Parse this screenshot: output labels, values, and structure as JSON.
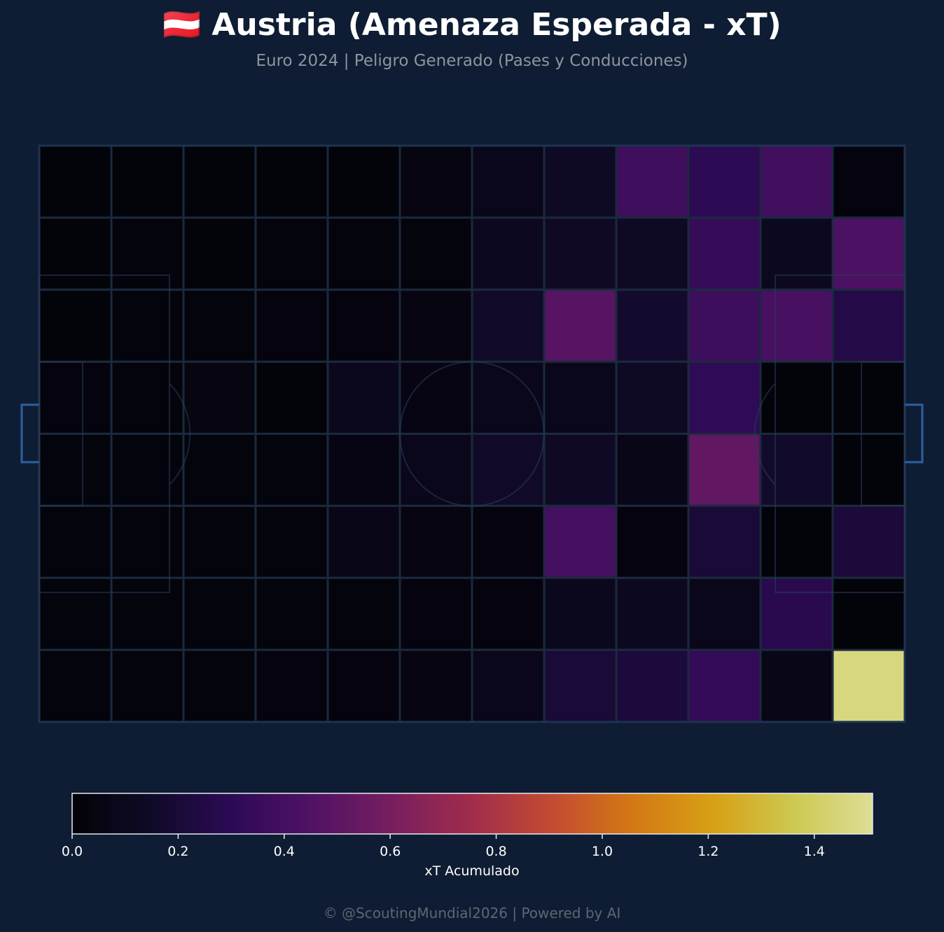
{
  "header": {
    "title": "🇦🇹 Austria (Amenaza Esperada - xT)",
    "subtitle": "Euro 2024 | Peligro Generado (Pases y Conducciones)"
  },
  "footer": {
    "credit": "© @ScoutingMundial2026 | Powered by AI"
  },
  "colors": {
    "background": "#0e1d33",
    "pitch_lines": "#1b2a3d",
    "goal": "#2d5fa0"
  },
  "chart_data": {
    "type": "heatmap",
    "colormap": "inferno",
    "grid": {
      "rows": 8,
      "cols": 12
    },
    "vmin": 0,
    "vmax": 1.51,
    "values": [
      [
        0.01,
        0.01,
        0.01,
        0.01,
        0.01,
        0.04,
        0.08,
        0.13,
        0.38,
        0.3,
        0.39,
        0.03
      ],
      [
        0.01,
        0.02,
        0.01,
        0.02,
        0.02,
        0.02,
        0.11,
        0.14,
        0.13,
        0.34,
        0.11,
        0.44
      ],
      [
        0.01,
        0.02,
        0.02,
        0.03,
        0.03,
        0.04,
        0.15,
        0.48,
        0.17,
        0.37,
        0.42,
        0.26
      ],
      [
        0.03,
        0.02,
        0.04,
        0.01,
        0.1,
        0.05,
        0.09,
        0.08,
        0.13,
        0.31,
        0.01,
        0.01
      ],
      [
        0.02,
        0.02,
        0.02,
        0.02,
        0.05,
        0.09,
        0.15,
        0.14,
        0.07,
        0.52,
        0.16,
        0.01
      ],
      [
        0.02,
        0.02,
        0.02,
        0.02,
        0.07,
        0.04,
        0.03,
        0.4,
        0.03,
        0.2,
        0.01,
        0.21
      ],
      [
        0.02,
        0.02,
        0.02,
        0.02,
        0.02,
        0.03,
        0.03,
        0.1,
        0.11,
        0.09,
        0.28,
        0.01
      ],
      [
        0.02,
        0.02,
        0.02,
        0.03,
        0.03,
        0.04,
        0.08,
        0.2,
        0.22,
        0.33,
        0.07,
        1.46
      ]
    ],
    "colorbar": {
      "label": "xT Acumulado",
      "ticks": [
        0.0,
        0.2,
        0.4,
        0.6,
        0.8,
        1.0,
        1.2,
        1.4
      ],
      "tick_labels": [
        "0.0",
        "0.2",
        "0.4",
        "0.6",
        "0.8",
        "1.0",
        "1.2",
        "1.4"
      ],
      "orientation": "horizontal",
      "position": "bottom"
    }
  }
}
